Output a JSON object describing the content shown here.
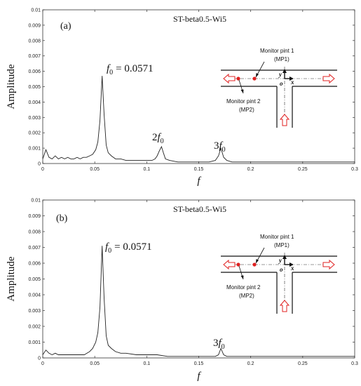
{
  "chart_data": [
    {
      "type": "line",
      "panel_label": "(a)",
      "title": "ST-beta0.5-Wi5",
      "xlabel": "f",
      "ylabel": "Amplitude",
      "xlim": [
        0,
        0.3
      ],
      "ylim": [
        0,
        0.01
      ],
      "xticks": [
        "0",
        "0.05",
        "0.1",
        "0.15",
        "0.2",
        "0.25",
        "0.3"
      ],
      "yticks": [
        "0",
        "0.001",
        "0.002",
        "0.003",
        "0.004",
        "0.005",
        "0.006",
        "0.007",
        "0.008",
        "0.009",
        "0.01"
      ],
      "x": [
        0,
        0.003,
        0.006,
        0.009,
        0.012,
        0.015,
        0.018,
        0.021,
        0.024,
        0.027,
        0.03,
        0.033,
        0.036,
        0.039,
        0.042,
        0.045,
        0.048,
        0.051,
        0.053,
        0.055,
        0.0571,
        0.059,
        0.061,
        0.063,
        0.066,
        0.07,
        0.075,
        0.08,
        0.085,
        0.09,
        0.095,
        0.1,
        0.105,
        0.108,
        0.11,
        0.112,
        0.1142,
        0.116,
        0.118,
        0.122,
        0.13,
        0.14,
        0.15,
        0.16,
        0.166,
        0.169,
        0.1713,
        0.174,
        0.177,
        0.182,
        0.19,
        0.2,
        0.21,
        0.22,
        0.23,
        0.24,
        0.25,
        0.26,
        0.27,
        0.28,
        0.29,
        0.3
      ],
      "y": [
        0.0003,
        0.0009,
        0.0004,
        0.0003,
        0.0005,
        0.0003,
        0.0004,
        0.0003,
        0.0004,
        0.0003,
        0.0003,
        0.0004,
        0.0003,
        0.0004,
        0.0004,
        0.0005,
        0.0006,
        0.0009,
        0.0014,
        0.0028,
        0.0057,
        0.0032,
        0.0012,
        0.0007,
        0.0005,
        0.0003,
        0.0003,
        0.0002,
        0.0002,
        0.0002,
        0.0002,
        0.0002,
        0.0002,
        0.0003,
        0.0005,
        0.0008,
        0.0011,
        0.0007,
        0.0003,
        0.0002,
        0.0001,
        0.0001,
        0.0001,
        0.0001,
        0.0002,
        0.0005,
        0.001,
        0.0004,
        0.0002,
        0.0001,
        0.0001,
        0.0001,
        0.0001,
        0.0001,
        0.0001,
        0.0001,
        0.0001,
        0.0001,
        0.0001,
        0.0001,
        0.0001,
        0.0001
      ],
      "annotations": {
        "f0_symbol": "f",
        "f0_sub": "0",
        "f0_value": "= 0.0571",
        "h2_coef": "2",
        "h2_symbol": "f",
        "h2_sub": "0",
        "h3_coef": "3",
        "h3_symbol": "f",
        "h3_sub": "0"
      },
      "inset": {
        "mp1_name": "Monitor pint 1",
        "mp1_abbr": "(MP1)",
        "mp2_name": "Monitor pint 2",
        "mp2_abbr": "(MP2)",
        "axis_x": "x",
        "axis_y": "y",
        "origin": "o"
      }
    },
    {
      "type": "line",
      "panel_label": "(b)",
      "title": "ST-beta0.5-Wi5",
      "xlabel": "f",
      "ylabel": "Amplitude",
      "xlim": [
        0,
        0.3
      ],
      "ylim": [
        0,
        0.01
      ],
      "xticks": [
        "0",
        "0.05",
        "0.1",
        "0.15",
        "0.2",
        "0.25",
        "0.3"
      ],
      "yticks": [
        "0",
        "0.001",
        "0.002",
        "0.003",
        "0.004",
        "0.005",
        "0.006",
        "0.007",
        "0.008",
        "0.009",
        "0.01"
      ],
      "x": [
        0,
        0.003,
        0.006,
        0.009,
        0.012,
        0.015,
        0.02,
        0.025,
        0.03,
        0.035,
        0.04,
        0.045,
        0.048,
        0.051,
        0.053,
        0.055,
        0.0571,
        0.059,
        0.061,
        0.063,
        0.066,
        0.07,
        0.075,
        0.08,
        0.09,
        0.1,
        0.11,
        0.12,
        0.13,
        0.14,
        0.15,
        0.16,
        0.166,
        0.169,
        0.1713,
        0.174,
        0.177,
        0.182,
        0.19,
        0.2,
        0.21,
        0.22,
        0.23,
        0.24,
        0.25,
        0.26,
        0.27,
        0.28,
        0.29,
        0.3
      ],
      "y": [
        0.0002,
        0.0005,
        0.0003,
        0.0002,
        0.0003,
        0.0002,
        0.0002,
        0.0002,
        0.0002,
        0.0002,
        0.0002,
        0.0004,
        0.0006,
        0.001,
        0.0016,
        0.0032,
        0.0071,
        0.0038,
        0.0014,
        0.0008,
        0.0006,
        0.0004,
        0.0003,
        0.0003,
        0.0002,
        0.0002,
        0.0002,
        0.0001,
        0.0001,
        0.0001,
        0.0001,
        0.0001,
        0.0001,
        0.0002,
        0.0006,
        0.0002,
        0.0001,
        0.0001,
        0.0001,
        0.0001,
        0.0001,
        0.0001,
        0.0001,
        0.0001,
        0.0001,
        0.0001,
        0.0001,
        0.0001,
        0.0001,
        0.0001
      ],
      "annotations": {
        "f0_symbol": "f",
        "f0_sub": "0",
        "f0_value": "= 0.0571",
        "h3_coef": "3",
        "h3_symbol": "f",
        "h3_sub": "0"
      },
      "inset": {
        "mp1_name": "Monitor pint 1",
        "mp1_abbr": "(MP1)",
        "mp2_name": "Monitor pint 2",
        "mp2_abbr": "(MP2)",
        "axis_x": "x",
        "axis_y": "y",
        "origin": "o"
      }
    }
  ],
  "colors": {
    "line": "#222222",
    "marker": "#e02020",
    "arrow": "#e02020",
    "frame": "#333333"
  }
}
